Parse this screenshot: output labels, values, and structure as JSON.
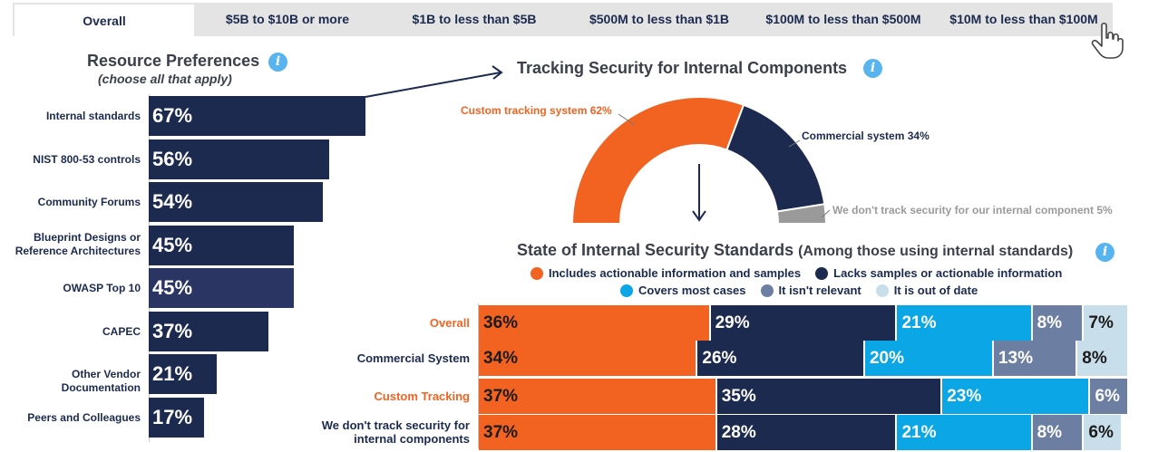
{
  "tabs": [
    {
      "label": "Overall",
      "active": true
    },
    {
      "label": "$5B to $10B or more",
      "active": false
    },
    {
      "label": "$1B to less than $5B",
      "active": false
    },
    {
      "label": "$500M to less than $1B",
      "active": false
    },
    {
      "label": "$100M to less than $500M",
      "active": false
    },
    {
      "label": "$10M to less than $100M",
      "active": false
    }
  ],
  "resource": {
    "title": "Resource Preferences",
    "subtitle": "(choose all that apply)"
  },
  "tracking": {
    "title": "Tracking Security for Internal Components"
  },
  "standards": {
    "title": "State of Internal Security Standards",
    "title_note": "(Among those using internal standards)"
  },
  "colors": {
    "navy": "#1c2a4f",
    "orange": "#f26322",
    "blue": "#0aa6e6",
    "slate": "#6c7fa3",
    "light": "#c8dfeb",
    "gray": "#9a9a9a",
    "info": "#57b4ee"
  },
  "chart_data": [
    {
      "type": "bar",
      "orientation": "horizontal",
      "title": "Resource Preferences",
      "subtitle": "(choose all that apply)",
      "categories": [
        "Internal standards",
        "NIST 800-53 controls",
        "Community Forums",
        "Blueprint Designs or Reference Architectures",
        "OWASP Top 10",
        "CAPEC",
        "Other Vendor Documentation",
        "Peers and Colleagues"
      ],
      "values": [
        67,
        56,
        54,
        45,
        45,
        37,
        21,
        17
      ],
      "value_labels": [
        "67%",
        "56%",
        "54%",
        "45%",
        "45%",
        "37%",
        "21%",
        "17%"
      ],
      "xlim": [
        0,
        100
      ]
    },
    {
      "type": "pie",
      "style": "half-donut",
      "title": "Tracking Security for Internal Components",
      "slices": [
        {
          "label": "Custom tracking system 62%",
          "value": 62,
          "color": "#f26322"
        },
        {
          "label": "Commercial system 34%",
          "value": 34,
          "color": "#1c2a4f"
        },
        {
          "label": "We don't track security for our internal component 5%",
          "value": 5,
          "color": "#9a9a9a"
        }
      ]
    },
    {
      "type": "bar",
      "orientation": "horizontal-stacked",
      "title": "State of Internal Security Standards",
      "categories": [
        "Overall",
        "Commercial System",
        "Custom Tracking",
        "We don't track security for internal components"
      ],
      "legend_position": "top",
      "series": [
        {
          "name": "Includes actionable information and samples",
          "color": "#f26322",
          "values": [
            36,
            34,
            37,
            37
          ],
          "labels": [
            "36%",
            "34%",
            "37%",
            "37%"
          ]
        },
        {
          "name": "Lacks samples or actionable information",
          "color": "#1c2a4f",
          "values": [
            29,
            26,
            35,
            28
          ],
          "labels": [
            "29%",
            "26%",
            "35%",
            "28%"
          ]
        },
        {
          "name": "Covers most cases",
          "color": "#0aa6e6",
          "values": [
            21,
            20,
            23,
            21
          ],
          "labels": [
            "21%",
            "20%",
            "23%",
            "21%"
          ]
        },
        {
          "name": "It isn't relevant",
          "color": "#6c7fa3",
          "values": [
            8,
            13,
            6,
            8
          ],
          "labels": [
            "8%",
            "13%",
            "6%",
            "8%"
          ]
        },
        {
          "name": "It is out of date",
          "color": "#c8dfeb",
          "values": [
            7,
            8,
            0,
            6
          ],
          "labels": [
            "7%",
            "8%",
            "",
            "6%"
          ]
        }
      ]
    }
  ]
}
